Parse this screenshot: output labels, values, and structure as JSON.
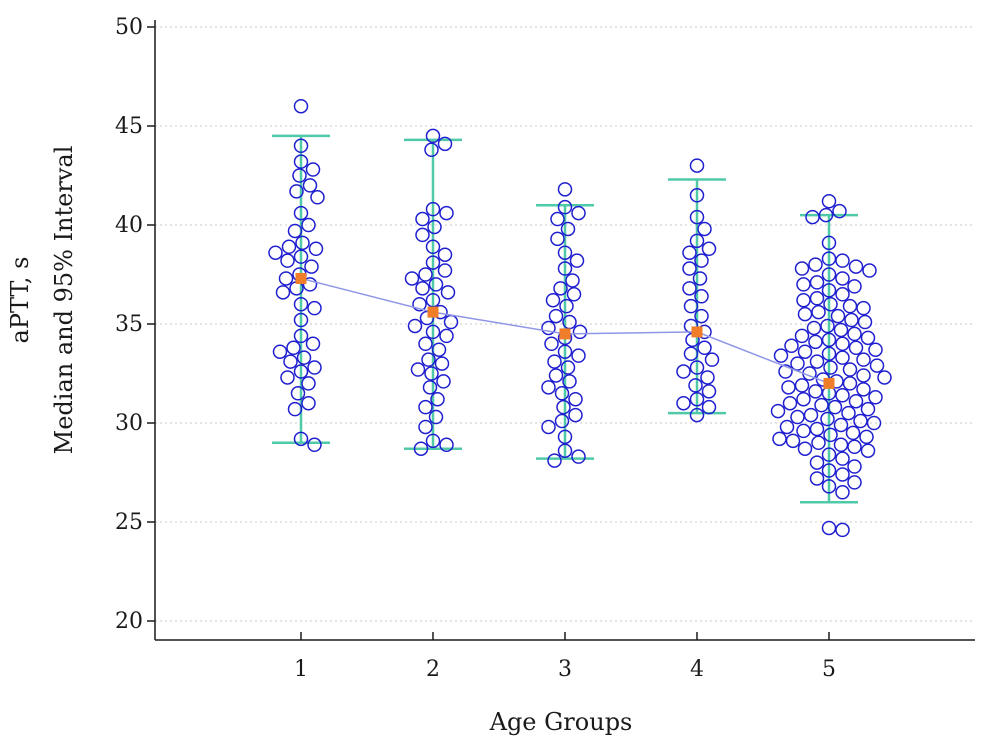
{
  "chart_data": {
    "type": "scatter",
    "subtype": "dot-plot with median and 95% interval",
    "title": "",
    "xlabel": "Age Groups",
    "ylabel_line1": "aPTT, s",
    "ylabel_line2": "Median and 95% Interval",
    "x_ticks": [
      "1",
      "2",
      "3",
      "4",
      "5"
    ],
    "y_ticks": [
      "20",
      "25",
      "30",
      "35",
      "40",
      "45",
      "50"
    ],
    "ylim": [
      20,
      50
    ],
    "grid": "horizontal dotted",
    "colors": {
      "points": "#1f1fd0",
      "interval": "#4fc9a8",
      "median": "#f07d2a",
      "median_line": "#8f96e6",
      "axis": "#1a1a1a",
      "grid": "#c8c8c8"
    },
    "groups": [
      {
        "x": 1,
        "median": 37.3,
        "lower": 29.0,
        "upper": 44.5,
        "values": [
          46.0,
          44.0,
          43.2,
          42.8,
          42.5,
          42.0,
          41.7,
          41.4,
          40.6,
          40.0,
          39.7,
          39.1,
          38.9,
          38.8,
          38.6,
          38.4,
          38.2,
          37.9,
          37.5,
          37.3,
          37.0,
          36.8,
          36.6,
          36.0,
          35.8,
          35.2,
          34.4,
          34.0,
          33.8,
          33.6,
          33.3,
          33.1,
          32.8,
          32.6,
          32.3,
          32.0,
          31.5,
          31.0,
          30.7,
          29.2,
          28.9
        ]
      },
      {
        "x": 2,
        "median": 35.6,
        "lower": 28.7,
        "upper": 44.3,
        "values": [
          44.5,
          44.1,
          43.8,
          40.8,
          40.6,
          40.3,
          39.9,
          39.5,
          38.9,
          38.5,
          38.1,
          37.7,
          37.5,
          37.3,
          37.0,
          36.8,
          36.6,
          36.2,
          36.0,
          35.6,
          35.3,
          35.1,
          34.9,
          34.6,
          34.4,
          34.0,
          33.7,
          33.2,
          33.0,
          32.7,
          32.5,
          32.1,
          31.8,
          31.2,
          30.8,
          30.3,
          29.8,
          29.1,
          28.9,
          28.7
        ]
      },
      {
        "x": 3,
        "median": 34.5,
        "lower": 28.2,
        "upper": 41.0,
        "values": [
          41.8,
          40.9,
          40.6,
          40.3,
          39.8,
          39.3,
          38.6,
          38.2,
          37.8,
          37.2,
          36.8,
          36.5,
          36.2,
          35.9,
          35.4,
          35.1,
          34.8,
          34.6,
          34.3,
          34.0,
          33.6,
          33.4,
          33.1,
          32.8,
          32.4,
          32.1,
          31.8,
          31.5,
          31.2,
          30.8,
          30.4,
          30.1,
          29.8,
          29.3,
          28.6,
          28.3,
          28.1
        ]
      },
      {
        "x": 4,
        "median": 34.6,
        "lower": 30.5,
        "upper": 42.3,
        "values": [
          43.0,
          41.5,
          40.4,
          39.8,
          39.2,
          38.8,
          38.6,
          38.2,
          37.8,
          37.3,
          36.8,
          36.4,
          35.9,
          35.4,
          34.9,
          34.6,
          34.2,
          33.8,
          33.5,
          33.2,
          32.8,
          32.6,
          32.3,
          31.9,
          31.6,
          31.2,
          31.0,
          30.8,
          30.4
        ]
      },
      {
        "x": 5,
        "median": 32.0,
        "lower": 26.0,
        "upper": 40.5,
        "values": [
          41.2,
          40.7,
          40.5,
          40.4,
          39.1,
          38.3,
          38.2,
          38.0,
          37.9,
          37.8,
          37.7,
          37.5,
          37.3,
          37.1,
          37.0,
          36.9,
          36.7,
          36.5,
          36.3,
          36.2,
          36.0,
          35.9,
          35.8,
          35.6,
          35.5,
          35.4,
          35.2,
          35.1,
          34.9,
          34.8,
          34.7,
          34.5,
          34.4,
          34.3,
          34.2,
          34.1,
          34.0,
          33.9,
          33.8,
          33.7,
          33.6,
          33.5,
          33.4,
          33.3,
          33.2,
          33.1,
          33.0,
          32.9,
          32.8,
          32.7,
          32.6,
          32.5,
          32.4,
          32.3,
          32.2,
          32.1,
          32.0,
          31.9,
          31.8,
          31.7,
          31.6,
          31.5,
          31.4,
          31.3,
          31.2,
          31.1,
          31.0,
          30.9,
          30.8,
          30.7,
          30.6,
          30.5,
          30.4,
          30.3,
          30.2,
          30.1,
          30.0,
          29.9,
          29.8,
          29.7,
          29.6,
          29.5,
          29.4,
          29.3,
          29.2,
          29.1,
          29.0,
          28.9,
          28.8,
          28.7,
          28.6,
          28.4,
          28.2,
          28.0,
          27.8,
          27.6,
          27.4,
          27.2,
          27.0,
          26.8,
          26.5,
          24.7,
          24.6
        ]
      }
    ]
  }
}
